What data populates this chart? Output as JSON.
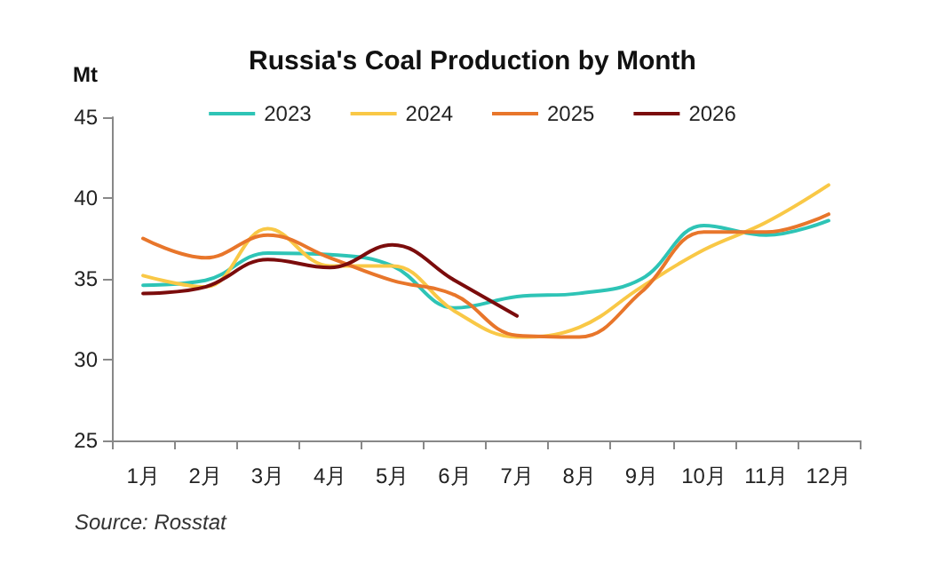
{
  "chart_data": {
    "type": "line",
    "title": "Russia's Coal Production by Month",
    "ylabel": "Mt",
    "annotations": [
      "Source: Rosstat"
    ],
    "categories": [
      "1月",
      "2月",
      "3月",
      "4月",
      "5月",
      "6月",
      "7月",
      "8月",
      "9月",
      "10月",
      "11月",
      "12月"
    ],
    "series": [
      {
        "name": "2023",
        "color": "#2ec4b6",
        "values": [
          34.6,
          34.9,
          36.6,
          36.5,
          35.8,
          33.2,
          33.9,
          34.1,
          35.0,
          38.3,
          37.7,
          38.6
        ]
      },
      {
        "name": "2024",
        "color": "#f9c846",
        "values": [
          35.2,
          34.5,
          38.1,
          35.8,
          35.8,
          33.0,
          31.4,
          32.0,
          34.5,
          36.8,
          38.5,
          40.8
        ]
      },
      {
        "name": "2025",
        "color": "#e8762b",
        "values": [
          37.5,
          36.3,
          37.7,
          36.3,
          34.9,
          34.0,
          31.5,
          31.4,
          34.2,
          37.9,
          37.9,
          39.0
        ]
      },
      {
        "name": "2026",
        "color": "#7b0c0c",
        "values": [
          34.1,
          34.5,
          36.2,
          35.7,
          37.1,
          34.9,
          32.7,
          null,
          null,
          null,
          null,
          null
        ]
      }
    ],
    "ylim": [
      25,
      45
    ],
    "yticks": [
      25,
      30,
      35,
      40,
      45
    ],
    "grid": false,
    "legend": "top",
    "marker": "none",
    "line_style": "solid"
  }
}
